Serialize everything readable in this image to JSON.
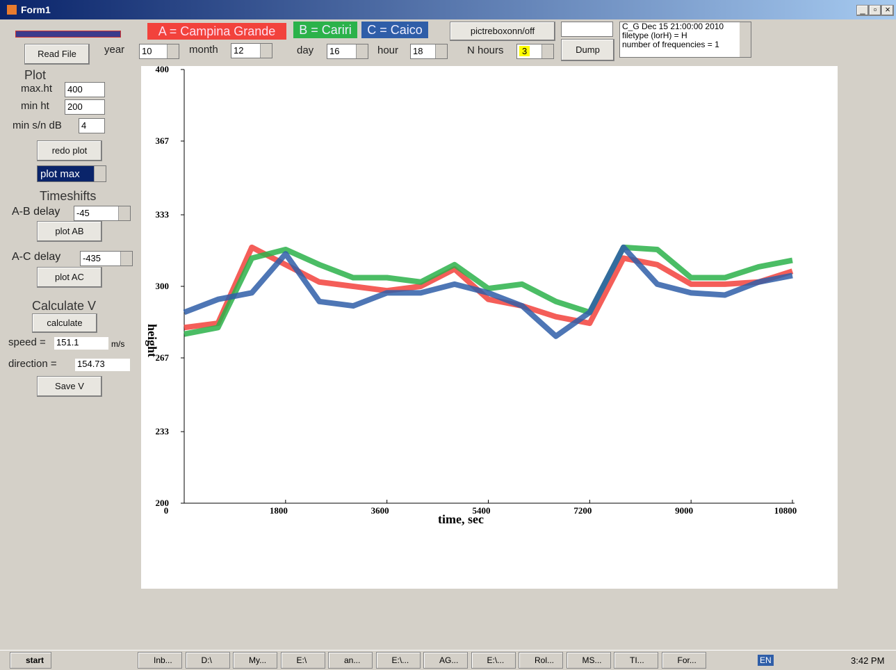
{
  "window": {
    "title": "Form1"
  },
  "top_bar": {
    "read_file": "Read File",
    "year_label": "year",
    "year": "10",
    "month_label": "month",
    "month": "12",
    "day_label": "day",
    "day": "16",
    "hour_label": "hour",
    "hour": "18",
    "picture_toggle": "pictreboxonn/off",
    "n_hours_label": "N hours",
    "n_hours": "3",
    "dump": "Dump",
    "info_lines": [
      "C_G Dec 15 21:00:00 2010",
      "filetype (lorH) = H",
      "number of frequencies = 1"
    ]
  },
  "left_panel": {
    "plot_heading": "Plot",
    "max_ht_label": "max.ht",
    "max_ht": "400",
    "min_ht_label": "min ht",
    "min_ht": "200",
    "min_sn_label": "min s/n dB",
    "min_sn": "4",
    "redo_plot": "redo plot",
    "plot_max": "plot max",
    "timeshifts_heading": "Timeshifts",
    "ab_delay_label": "A-B delay",
    "ab_delay": "-45",
    "plot_ab": "plot AB",
    "ac_delay_label": "A-C delay",
    "ac_delay": "-435",
    "plot_ac": "plot AC",
    "calc_heading": "Calculate V",
    "calculate": "calculate",
    "speed_label": "speed =",
    "speed": "151.1",
    "speed_unit": "m/s",
    "direction_label": "direction =",
    "direction": "154.73",
    "save_v": "Save V"
  },
  "chart_data": {
    "type": "line",
    "x_label": "time, sec",
    "y_label": "height",
    "x": [
      0,
      600,
      1200,
      1800,
      2400,
      3000,
      3600,
      4200,
      4800,
      5400,
      6000,
      6600,
      7200,
      7800,
      8400,
      9000,
      9600,
      10200,
      10800
    ],
    "series": [
      {
        "name": "A = Campina Grande",
        "color": "#f2423c",
        "values": [
          281,
          283,
          318,
          310,
          302,
          300,
          298,
          300,
          308,
          294,
          291,
          286,
          283,
          313,
          310,
          301,
          301,
          302,
          307
        ]
      },
      {
        "name": "B = Cariri",
        "color": "#2bb24a",
        "values": [
          278,
          281,
          313,
          317,
          310,
          304,
          304,
          302,
          310,
          299,
          301,
          293,
          288,
          318,
          317,
          304,
          304,
          309,
          312
        ]
      },
      {
        "name": "C = Caico",
        "color": "#2f5ea8",
        "values": [
          288,
          294,
          297,
          315,
          293,
          291,
          297,
          297,
          301,
          297,
          291,
          277,
          288,
          318,
          301,
          297,
          296,
          302,
          305
        ]
      }
    ],
    "xlim": [
      0,
      10800
    ],
    "ylim": [
      200,
      400
    ],
    "xticks": [
      0,
      1800,
      3600,
      5400,
      7200,
      9000,
      10800
    ],
    "yticks": [
      200,
      233,
      267,
      300,
      333,
      367,
      400
    ]
  },
  "taskbar": {
    "start": "start",
    "items": [
      "Inb...",
      "D:\\",
      "My...",
      "E:\\",
      "an...",
      "E:\\...",
      "AG...",
      "E:\\...",
      "Rol...",
      "MS...",
      "TI...",
      "For..."
    ],
    "language": "EN",
    "clock": "3:42 PM"
  }
}
